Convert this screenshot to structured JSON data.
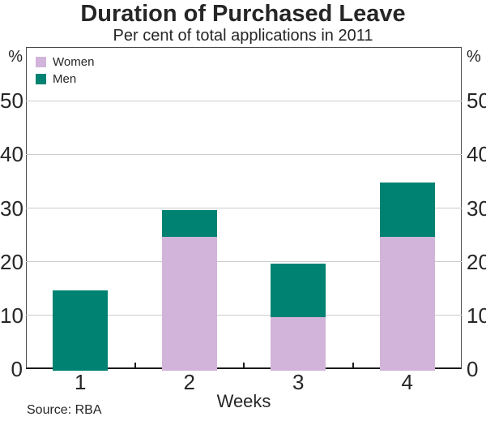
{
  "chart_data": {
    "type": "bar",
    "stacked": true,
    "title": "Duration of Purchased Leave",
    "subtitle": "Per cent of total applications in 2011",
    "xlabel": "Weeks",
    "ylabel_left": "%",
    "ylabel_right": "%",
    "categories": [
      "1",
      "2",
      "3",
      "4"
    ],
    "series": [
      {
        "name": "Women",
        "color": "#D2B4DA",
        "values": [
          0,
          25,
          10,
          25
        ]
      },
      {
        "name": "Men",
        "color": "#008272",
        "values": [
          15,
          5,
          10,
          10
        ]
      }
    ],
    "stacked_totals": [
      15,
      30,
      20,
      35
    ],
    "ylim": [
      0,
      60
    ],
    "ytick_interval": 10,
    "yticks_labeled": [
      0,
      10,
      20,
      30,
      40,
      50
    ],
    "grid": true,
    "legend_position": "top-left",
    "source": "Source: RBA",
    "colors": {
      "women": "#D2B4DA",
      "men": "#008272",
      "gridline": "#cccccc",
      "frame": "#4a4a4a",
      "axis": "#1a1a1a",
      "text": "#262626"
    }
  }
}
